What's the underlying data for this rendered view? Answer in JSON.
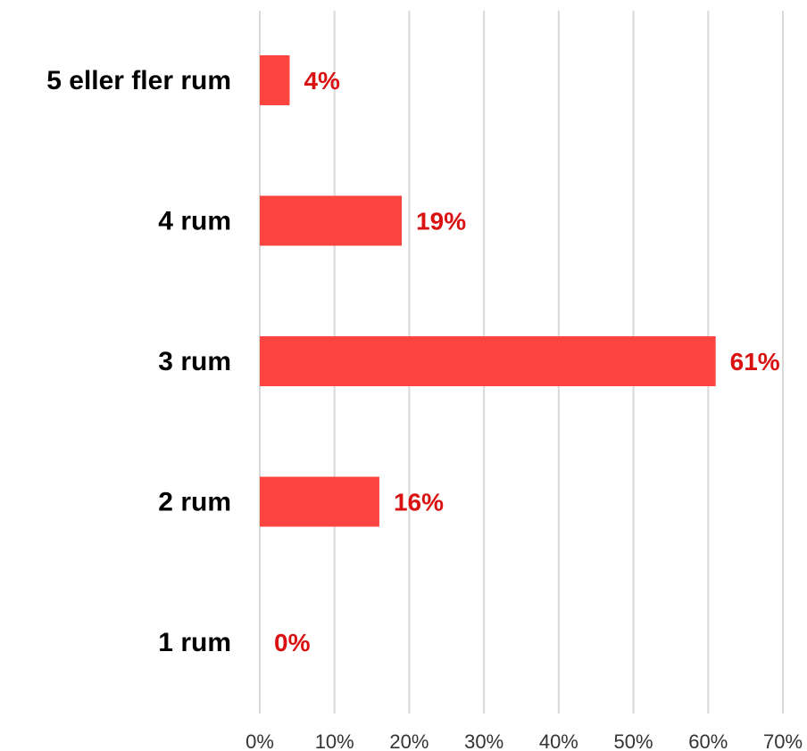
{
  "chart_data": {
    "type": "bar",
    "orientation": "horizontal",
    "categories": [
      "5 eller fler rum",
      "4 rum",
      "3 rum",
      "2 rum",
      "1 rum"
    ],
    "values": [
      4,
      19,
      61,
      16,
      0
    ],
    "data_labels": [
      "4%",
      "19%",
      "61%",
      "16%",
      "0%"
    ],
    "xlim": [
      0,
      70
    ],
    "xticks": [
      0,
      10,
      20,
      30,
      40,
      50,
      60,
      70
    ],
    "xtick_labels": [
      "0%",
      "10%",
      "20%",
      "30%",
      "40%",
      "50%",
      "60%",
      "70%"
    ],
    "title": "",
    "xlabel": "",
    "ylabel": "",
    "grid": "vertical",
    "legend": "none",
    "colors": {
      "bar": "#fc4540",
      "data_label": "#d91111",
      "grid": "#d9d9d9",
      "category_label": "#000000",
      "tick_label": "#333333"
    }
  }
}
